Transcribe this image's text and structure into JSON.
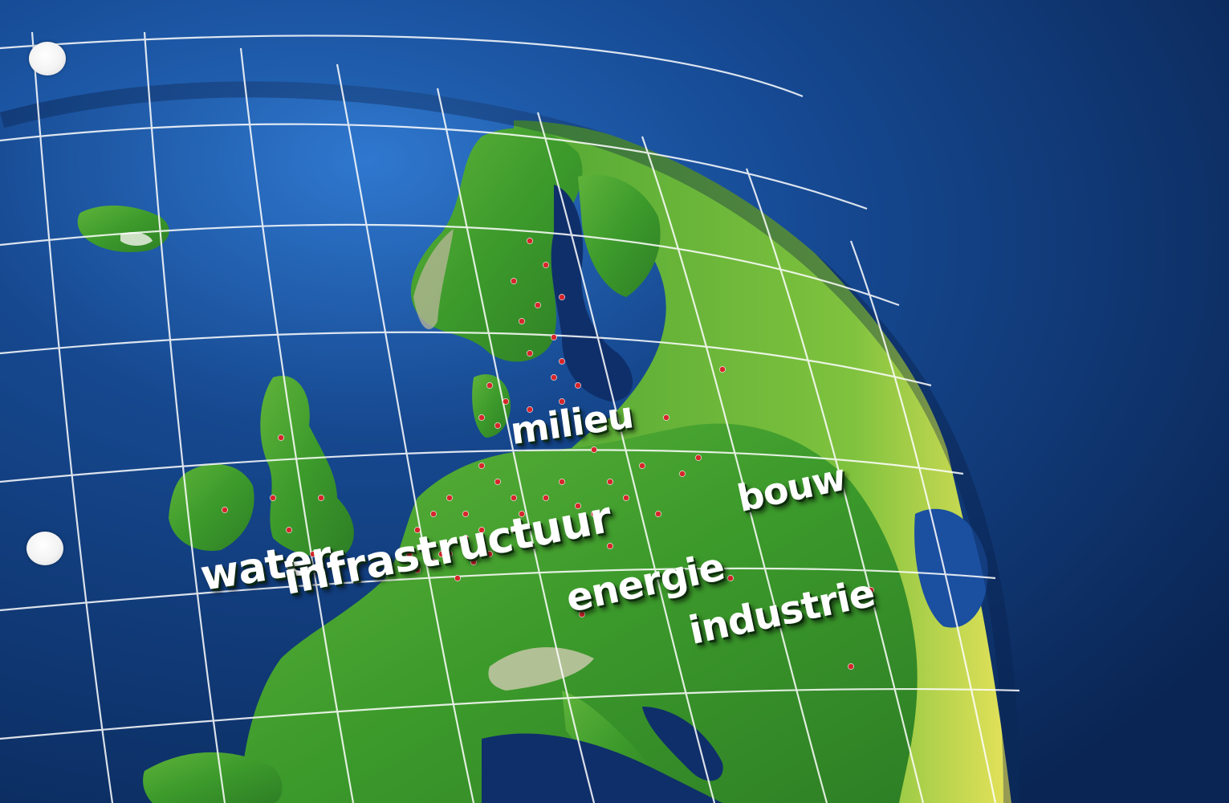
{
  "keywords": {
    "milieu": "milieu",
    "bouw": "bouw",
    "water": "water",
    "infrastructuur": "infrastructuur",
    "energie": "energie",
    "industrie": "industrie"
  },
  "colors": {
    "sky_dark": "#0b2a5e",
    "sky_light": "#1e5fb0",
    "ocean": "#123d7a",
    "land_green": "#3a9a2a",
    "land_light": "#7cc24a",
    "grid_line": "#ffffff",
    "marker": "#d6262b",
    "keyword_text": "#ffffff"
  }
}
